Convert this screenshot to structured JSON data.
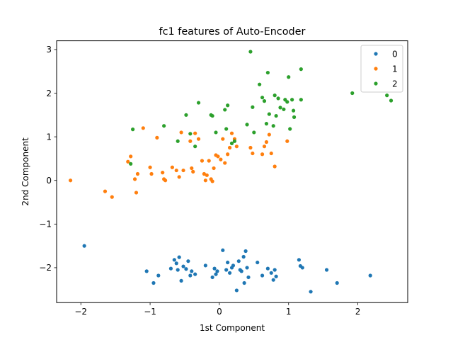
{
  "chart_data": {
    "type": "scatter",
    "title": "fc1 features of Auto-Encoder",
    "xlabel": "1st Component",
    "ylabel": "2nd Component",
    "xlim": [
      -2.35,
      2.72
    ],
    "ylim": [
      -2.8,
      3.2
    ],
    "xticks": [
      -2,
      -1,
      0,
      1,
      2
    ],
    "xtick_labels": [
      "−2",
      "−1",
      "0",
      "1",
      "2"
    ],
    "yticks": [
      -2,
      -1,
      0,
      1,
      2,
      3
    ],
    "ytick_labels": [
      "−2",
      "−1",
      "0",
      "1",
      "2",
      "3"
    ],
    "grid": false,
    "legend_position": "top-right",
    "series": [
      {
        "name": "0",
        "color": "#1f77b4",
        "points": [
          [
            -1.95,
            -1.5
          ],
          [
            -1.05,
            -2.08
          ],
          [
            -0.95,
            -2.35
          ],
          [
            -0.88,
            -2.18
          ],
          [
            -0.7,
            -2.02
          ],
          [
            -0.65,
            -1.82
          ],
          [
            -0.62,
            -1.9
          ],
          [
            -0.6,
            -2.05
          ],
          [
            -0.58,
            -1.76
          ],
          [
            -0.55,
            -2.3
          ],
          [
            -0.52,
            -1.97
          ],
          [
            -0.48,
            -2.03
          ],
          [
            -0.45,
            -1.85
          ],
          [
            -0.42,
            -2.18
          ],
          [
            -0.4,
            -2.08
          ],
          [
            -0.35,
            -2.15
          ],
          [
            -0.2,
            -1.95
          ],
          [
            -0.1,
            -2.22
          ],
          [
            -0.07,
            -2.02
          ],
          [
            -0.05,
            -2.15
          ],
          [
            -0.03,
            -2.08
          ],
          [
            0.05,
            -1.6
          ],
          [
            0.1,
            -2.05
          ],
          [
            0.12,
            -1.88
          ],
          [
            0.15,
            -2.12
          ],
          [
            0.18,
            -2.0
          ],
          [
            0.2,
            -1.95
          ],
          [
            0.25,
            -2.52
          ],
          [
            0.28,
            -1.85
          ],
          [
            0.3,
            -2.05
          ],
          [
            0.32,
            -2.08
          ],
          [
            0.35,
            -1.75
          ],
          [
            0.36,
            -2.35
          ],
          [
            0.38,
            -1.62
          ],
          [
            0.4,
            -2.0
          ],
          [
            0.42,
            -2.22
          ],
          [
            0.55,
            -1.88
          ],
          [
            0.62,
            -2.18
          ],
          [
            0.7,
            -2.02
          ],
          [
            0.75,
            -2.12
          ],
          [
            0.78,
            -2.28
          ],
          [
            0.8,
            -2.05
          ],
          [
            0.82,
            -2.2
          ],
          [
            1.15,
            -1.82
          ],
          [
            1.17,
            -1.96
          ],
          [
            1.2,
            -2.0
          ],
          [
            1.32,
            -2.55
          ],
          [
            1.55,
            -2.05
          ],
          [
            1.7,
            -2.35
          ],
          [
            2.18,
            -2.18
          ]
        ]
      },
      {
        "name": "1",
        "color": "#ff7f0e",
        "points": [
          [
            -2.15,
            0.0
          ],
          [
            -1.65,
            -0.25
          ],
          [
            -1.55,
            -0.38
          ],
          [
            -1.32,
            0.43
          ],
          [
            -1.28,
            0.55
          ],
          [
            -1.22,
            0.03
          ],
          [
            -1.2,
            -0.28
          ],
          [
            -1.18,
            0.15
          ],
          [
            -1.1,
            1.2
          ],
          [
            -1.0,
            0.3
          ],
          [
            -0.98,
            0.15
          ],
          [
            -0.9,
            0.98
          ],
          [
            -0.82,
            0.18
          ],
          [
            -0.8,
            0.03
          ],
          [
            -0.78,
            0.0
          ],
          [
            -0.68,
            0.3
          ],
          [
            -0.62,
            0.23
          ],
          [
            -0.58,
            0.08
          ],
          [
            -0.55,
            1.1
          ],
          [
            -0.52,
            0.23
          ],
          [
            -0.42,
            0.9
          ],
          [
            -0.4,
            0.28
          ],
          [
            -0.38,
            0.2
          ],
          [
            -0.35,
            1.08
          ],
          [
            -0.3,
            0.95
          ],
          [
            -0.25,
            0.45
          ],
          [
            -0.22,
            0.15
          ],
          [
            -0.2,
            0.0
          ],
          [
            -0.18,
            0.12
          ],
          [
            -0.15,
            0.45
          ],
          [
            -0.12,
            0.03
          ],
          [
            -0.1,
            -0.02
          ],
          [
            -0.08,
            0.28
          ],
          [
            -0.05,
            0.58
          ],
          [
            -0.02,
            0.55
          ],
          [
            0.02,
            0.48
          ],
          [
            0.05,
            0.95
          ],
          [
            0.08,
            0.4
          ],
          [
            0.12,
            0.6
          ],
          [
            0.15,
            0.75
          ],
          [
            0.18,
            1.08
          ],
          [
            0.22,
            0.95
          ],
          [
            0.25,
            0.78
          ],
          [
            0.45,
            0.75
          ],
          [
            0.48,
            0.62
          ],
          [
            0.62,
            0.6
          ],
          [
            0.65,
            0.78
          ],
          [
            0.68,
            0.88
          ],
          [
            0.72,
            1.05
          ],
          [
            0.75,
            0.62
          ],
          [
            0.8,
            0.32
          ],
          [
            0.98,
            0.9
          ]
        ]
      },
      {
        "name": "2",
        "color": "#2ca02c",
        "points": [
          [
            -1.28,
            0.38
          ],
          [
            -1.25,
            1.17
          ],
          [
            -0.8,
            1.25
          ],
          [
            -0.6,
            0.9
          ],
          [
            -0.48,
            1.5
          ],
          [
            -0.42,
            1.07
          ],
          [
            -0.35,
            0.78
          ],
          [
            -0.3,
            1.78
          ],
          [
            -0.12,
            1.5
          ],
          [
            -0.1,
            1.48
          ],
          [
            -0.05,
            1.1
          ],
          [
            0.08,
            1.62
          ],
          [
            0.1,
            1.18
          ],
          [
            0.12,
            1.72
          ],
          [
            0.18,
            0.85
          ],
          [
            0.22,
            0.9
          ],
          [
            0.4,
            1.28
          ],
          [
            0.45,
            2.95
          ],
          [
            0.48,
            1.68
          ],
          [
            0.5,
            1.1
          ],
          [
            0.58,
            2.2
          ],
          [
            0.62,
            1.9
          ],
          [
            0.65,
            1.82
          ],
          [
            0.68,
            1.3
          ],
          [
            0.7,
            2.47
          ],
          [
            0.72,
            1.52
          ],
          [
            0.78,
            1.25
          ],
          [
            0.8,
            1.95
          ],
          [
            0.82,
            1.48
          ],
          [
            0.85,
            1.88
          ],
          [
            0.88,
            1.67
          ],
          [
            0.93,
            1.63
          ],
          [
            0.95,
            1.85
          ],
          [
            0.98,
            1.8
          ],
          [
            1.0,
            2.37
          ],
          [
            1.02,
            1.18
          ],
          [
            1.05,
            1.85
          ],
          [
            1.07,
            1.6
          ],
          [
            1.08,
            1.45
          ],
          [
            1.18,
            2.55
          ],
          [
            1.18,
            1.85
          ],
          [
            1.92,
            2.0
          ],
          [
            2.42,
            1.95
          ],
          [
            2.48,
            1.83
          ]
        ]
      }
    ]
  }
}
